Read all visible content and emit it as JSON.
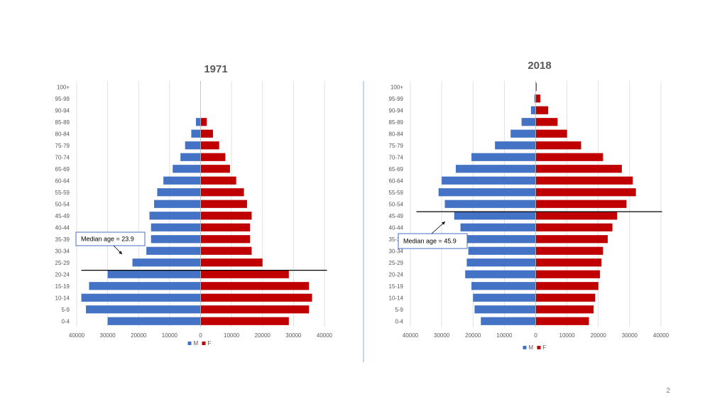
{
  "page_number": "2",
  "colors": {
    "male": "#4472C4",
    "female": "#C00000",
    "grid": "#d9d9d9",
    "divider": "#8faadc",
    "text": "#595959"
  },
  "chart_data": [
    {
      "type": "bar",
      "orientation": "horizontal",
      "title": "1971",
      "categories": [
        "100+",
        "95-99",
        "90-94",
        "85-89",
        "80-84",
        "75-79",
        "70-74",
        "65-69",
        "60-64",
        "55-59",
        "50-54",
        "45-49",
        "40-44",
        "35-39",
        "30-34",
        "25-29",
        "20-24",
        "15-19",
        "10-14",
        "5-9",
        "0-4"
      ],
      "series": [
        {
          "name": "M",
          "values": [
            0,
            0,
            0,
            1500,
            3000,
            5000,
            6500,
            9000,
            12000,
            14000,
            15000,
            16500,
            16000,
            16000,
            17500,
            22000,
            30000,
            36000,
            38500,
            37000,
            30000
          ]
        },
        {
          "name": "F",
          "values": [
            0,
            0,
            0,
            2000,
            4000,
            6000,
            8000,
            9500,
            11500,
            14000,
            15000,
            16500,
            16000,
            16000,
            16500,
            20000,
            28500,
            35000,
            36000,
            35000,
            28500
          ]
        }
      ],
      "xlim": [
        -40000,
        40000
      ],
      "x_ticks": [
        "40000",
        "30000",
        "20000",
        "10000",
        "0",
        "10000",
        "20000",
        "30000",
        "40000"
      ],
      "legend": [
        "M",
        "F"
      ],
      "legend_position": "bottom",
      "median_line_category": "20-24",
      "annotation": "Median age = 23.9"
    },
    {
      "type": "bar",
      "orientation": "horizontal",
      "title": "2018",
      "categories": [
        "100+",
        "95-99",
        "90-94",
        "85-89",
        "80-84",
        "75-79",
        "70-74",
        "65-69",
        "60-64",
        "55-59",
        "50-54",
        "45-49",
        "40-44",
        "35-39",
        "30-34",
        "25-29",
        "20-24",
        "15-19",
        "10-14",
        "5-9",
        "0-4"
      ],
      "series": [
        {
          "name": "M",
          "values": [
            100,
            400,
            1500,
            4500,
            8000,
            13000,
            20500,
            25500,
            30000,
            31000,
            29000,
            26000,
            24000,
            22000,
            21500,
            22000,
            22500,
            20500,
            20000,
            19500,
            17500
          ]
        },
        {
          "name": "F",
          "values": [
            300,
            1500,
            4000,
            7000,
            10000,
            14500,
            21500,
            27500,
            31000,
            32000,
            29000,
            26000,
            24500,
            23000,
            21500,
            21000,
            20500,
            20000,
            19000,
            18500,
            17000
          ]
        }
      ],
      "xlim": [
        -40000,
        40000
      ],
      "x_ticks": [
        "40000",
        "30000",
        "20000",
        "10000",
        "0",
        "10000",
        "20000",
        "30000",
        "40000"
      ],
      "legend": [
        "M",
        "F"
      ],
      "legend_position": "bottom",
      "median_line_category": "45-49",
      "annotation": "Median age = 45.9"
    }
  ]
}
